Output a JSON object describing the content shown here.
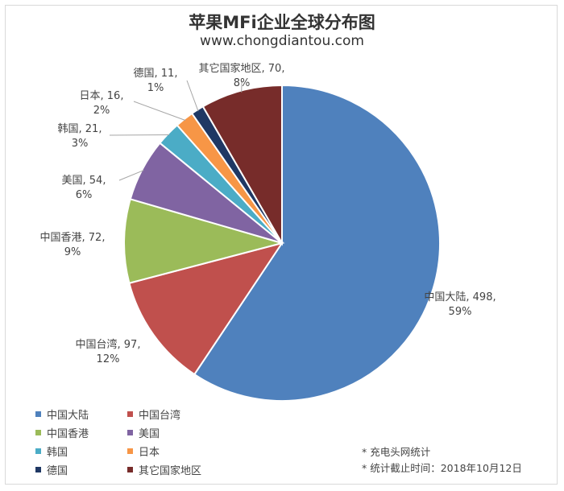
{
  "chart_data": {
    "type": "pie",
    "title": "苹果MFi企业全球分布图",
    "subtitle": "www.chongdiantou.com",
    "categories": [
      "中国大陆",
      "中国台湾",
      "中国香港",
      "美国",
      "韩国",
      "日本",
      "德国",
      "其它国家地区"
    ],
    "values": [
      498,
      97,
      72,
      54,
      21,
      16,
      11,
      70
    ],
    "percent_labels": [
      "59%",
      "12%",
      "9%",
      "6%",
      "3%",
      "2%",
      "1%",
      "8%"
    ],
    "colors": [
      "#4f81bd",
      "#c0504d",
      "#9bbb59",
      "#8064a2",
      "#4bacc6",
      "#f79646",
      "#1f3864",
      "#772c2a"
    ],
    "legend_position": "bottom-left"
  },
  "notes": [
    "* 充电头网统计",
    "* 统计截止时间：2018年10月12日"
  ]
}
